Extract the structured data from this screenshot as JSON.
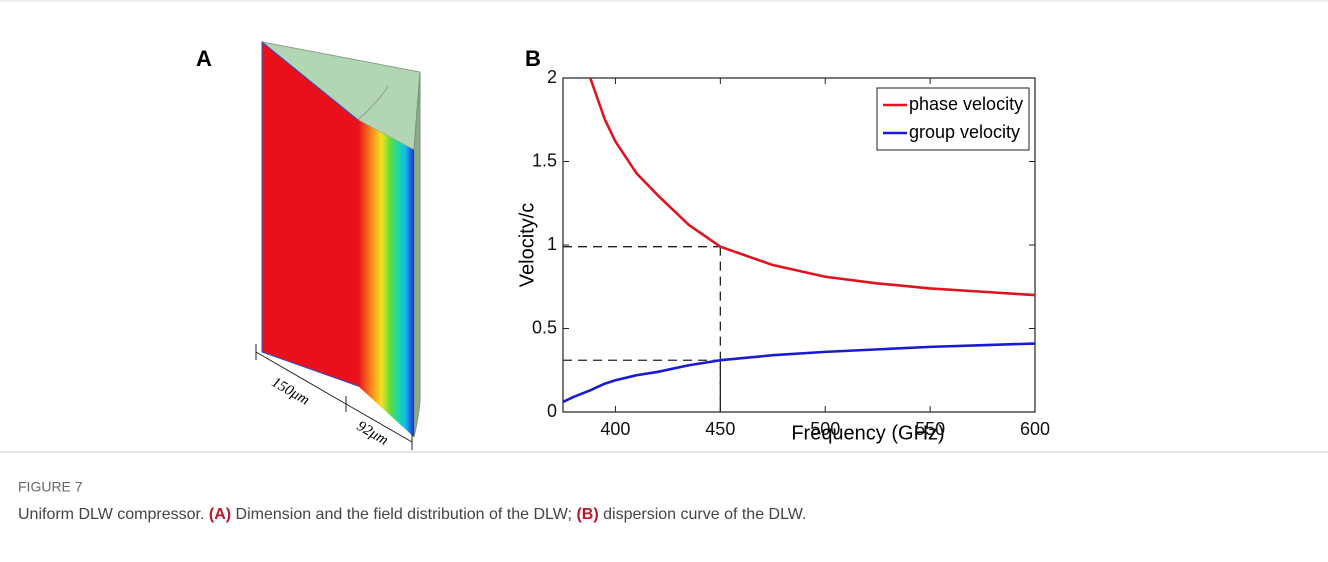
{
  "figure": {
    "label": "FIGURE 7",
    "caption": [
      "Uniform DLW compressor. ",
      "(A)",
      " Dimension and the field distribution of the DLW; ",
      "(B)",
      " dispersion curve of the DLW."
    ],
    "panels": {
      "a": {
        "label": "A",
        "dimensions": [
          "150μm",
          "92μm"
        ]
      },
      "b": {
        "label": "B"
      }
    }
  },
  "chart_data": {
    "type": "line",
    "x_label": "Frequency (GHz)",
    "y_label": "Velocity/c",
    "x": [
      375,
      380,
      388,
      395,
      400,
      410,
      420,
      435,
      450,
      475,
      500,
      525,
      550,
      575,
      600
    ],
    "series": [
      {
        "name": "phase velocity",
        "color": "#e0141e",
        "values": [
          null,
          null,
          2.0,
          1.75,
          1.62,
          1.43,
          1.3,
          1.12,
          0.99,
          0.88,
          0.81,
          0.77,
          0.74,
          0.72,
          0.7
        ]
      },
      {
        "name": "group velocity",
        "color": "#1a1ad0",
        "values": [
          0.06,
          0.09,
          0.13,
          0.17,
          0.19,
          0.22,
          0.24,
          0.28,
          0.31,
          0.34,
          0.36,
          0.375,
          0.39,
          0.4,
          0.41
        ]
      }
    ],
    "guides": [
      {
        "x": 450,
        "y": 0.99
      },
      {
        "x": 450,
        "y": 0.31
      }
    ],
    "xlim": [
      375,
      600
    ],
    "xticks": [
      400,
      450,
      500,
      550,
      600
    ],
    "ylim": [
      0,
      2
    ],
    "yticks": [
      0,
      0.5,
      1,
      1.5,
      2
    ],
    "legend": "upper-right"
  }
}
